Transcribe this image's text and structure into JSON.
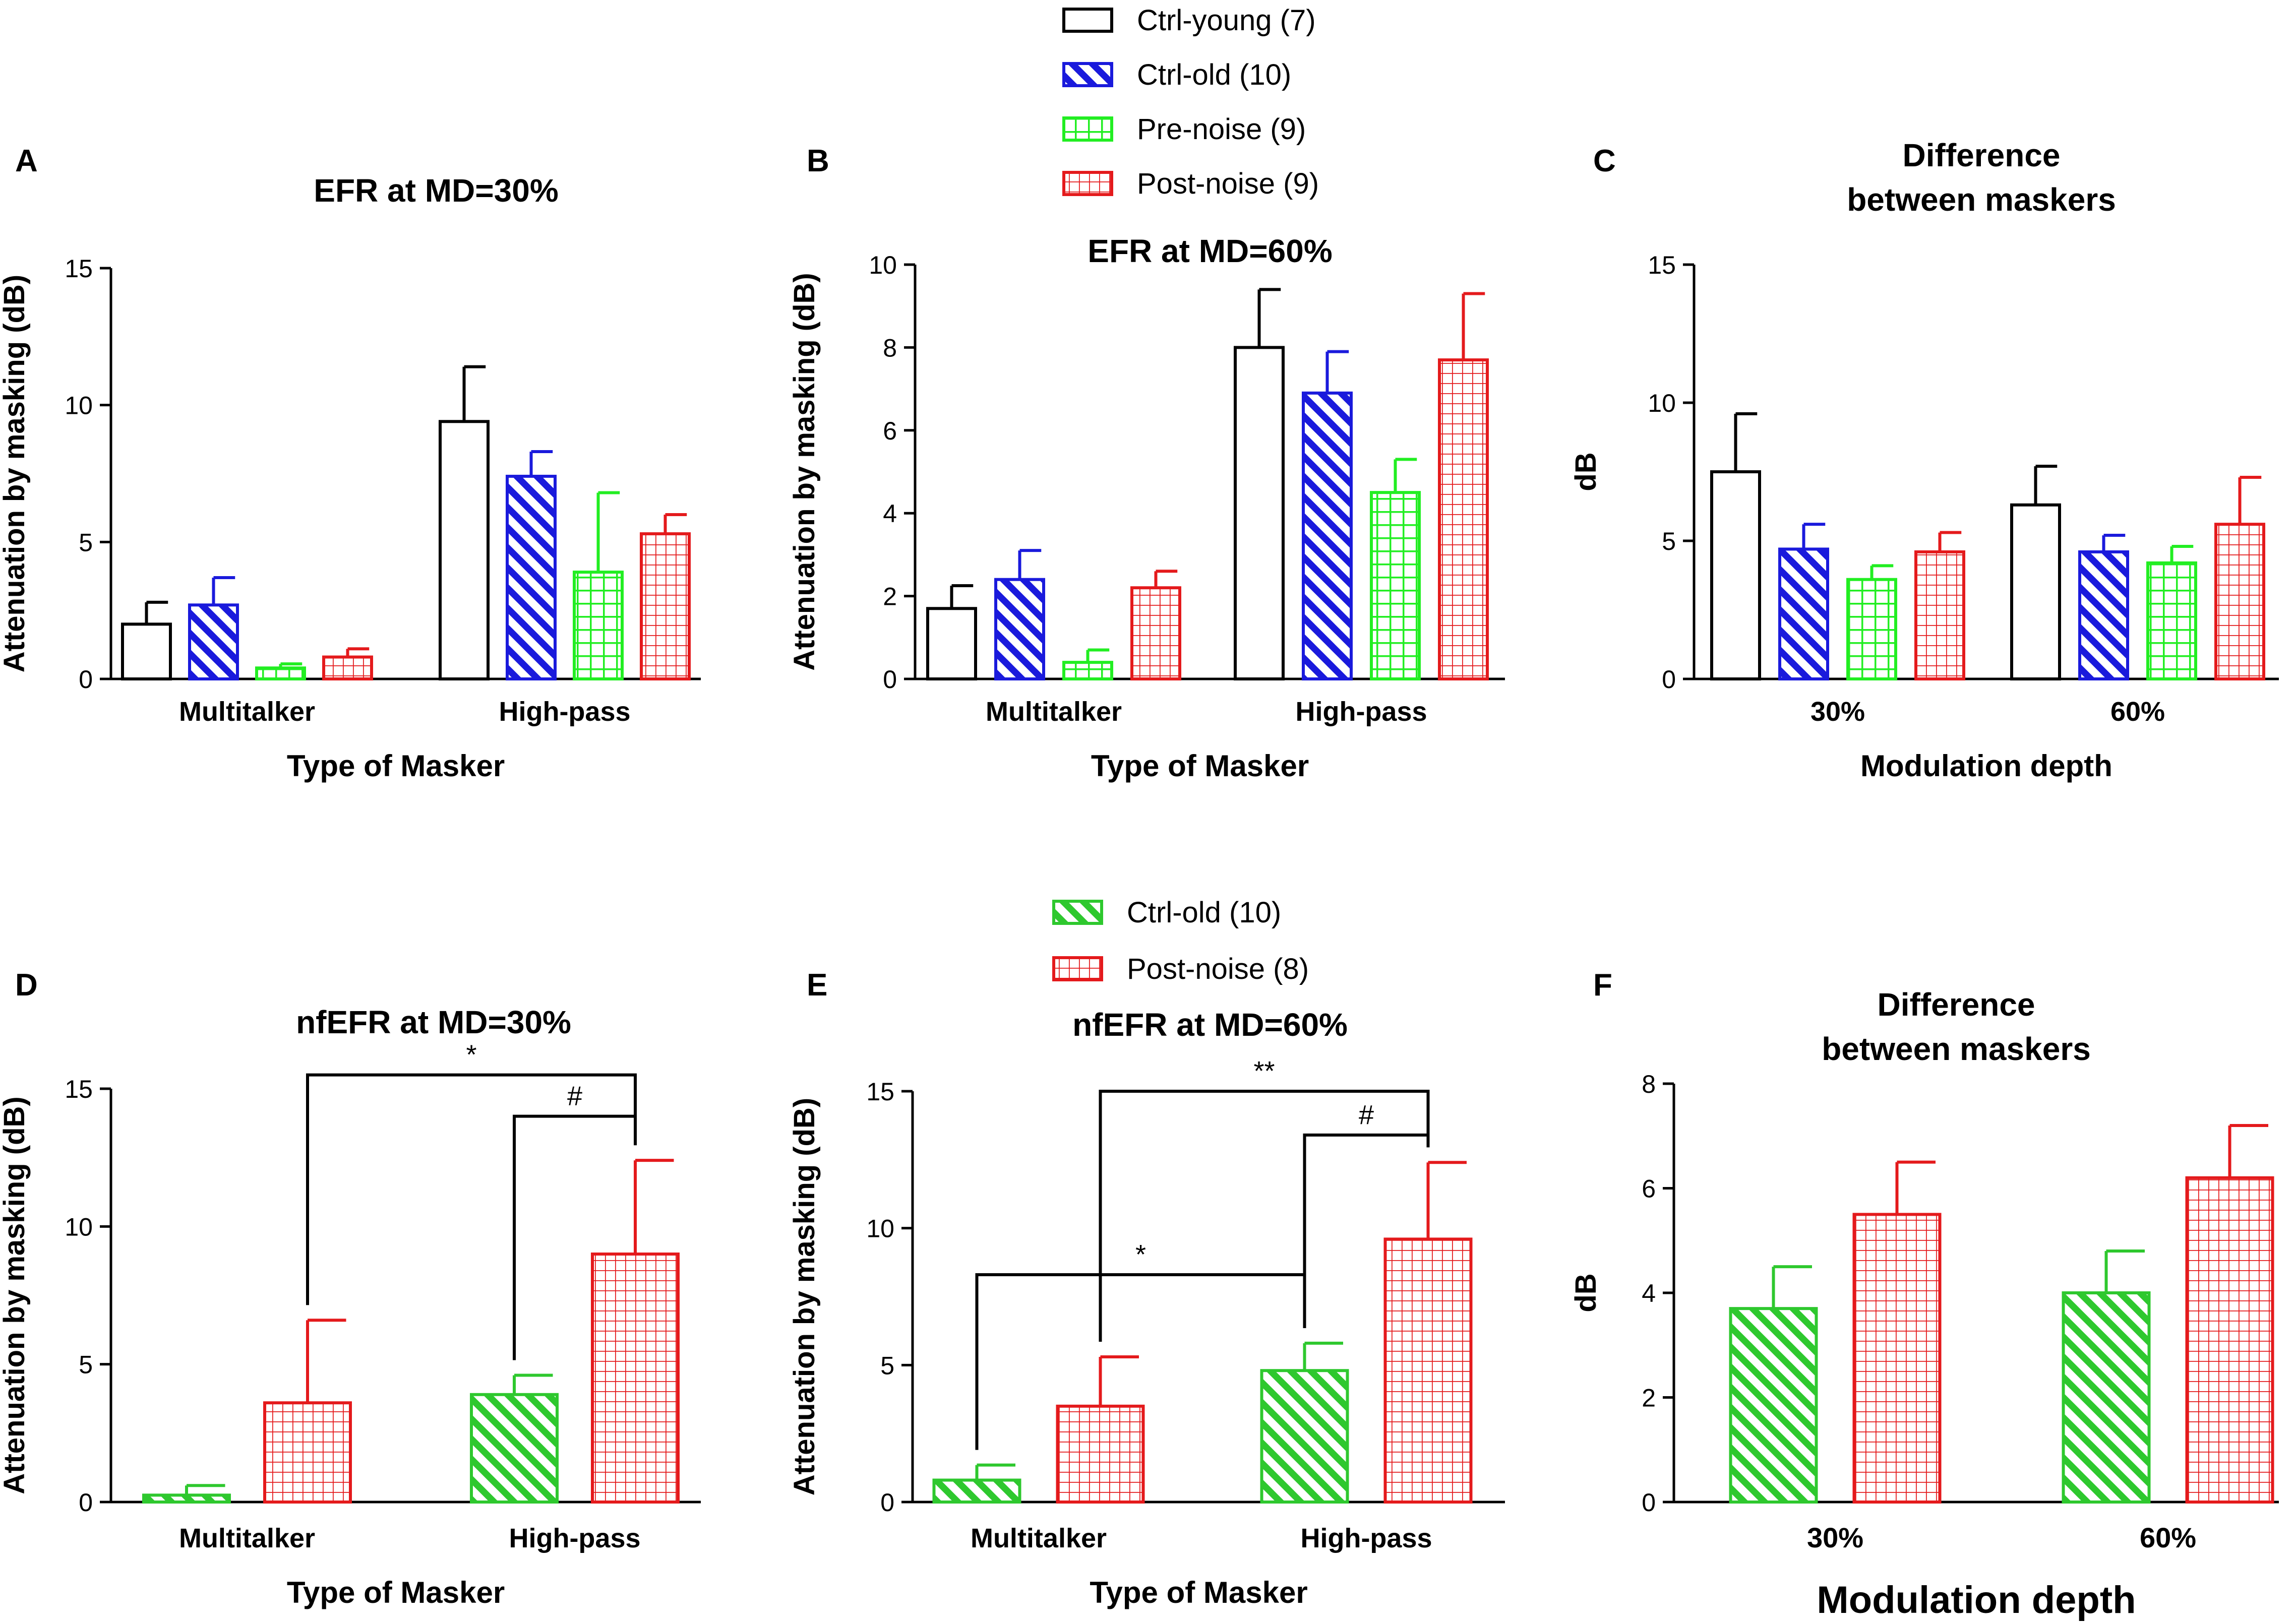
{
  "colors": {
    "axis": "#000000",
    "ctrl_young": "#000000",
    "ctrl_old": "#1a1adc",
    "pre_noise": "#22ee22",
    "post_noise": "#e41a1c",
    "ctrl_old_nf": "#2ec82e"
  },
  "legends": {
    "top": [
      {
        "label": "Ctrl-young (7)",
        "pattern": "none",
        "color": "#000000"
      },
      {
        "label": "Ctrl-old (10)",
        "pattern": "diag",
        "color": "#1a1adc"
      },
      {
        "label": "Pre-noise (9)",
        "pattern": "grid-bold",
        "color": "#22ee22"
      },
      {
        "label": "Post-noise (9)",
        "pattern": "grid",
        "color": "#e41a1c"
      }
    ],
    "bottom": [
      {
        "label": "Ctrl-old (10)",
        "pattern": "diag",
        "color": "#2ec82e"
      },
      {
        "label": "Post-noise (8)",
        "pattern": "grid",
        "color": "#e41a1c"
      }
    ]
  },
  "chart_data": [
    {
      "panel": "A",
      "type": "bar",
      "title": "EFR at MD=30%",
      "xlabel": "Type of Masker",
      "ylabel": "Attenuation by masking (dB)",
      "ylim": [
        0,
        15
      ],
      "yticks": [
        0,
        5,
        10,
        15
      ],
      "categories": [
        "Multitalker",
        "High-pass"
      ],
      "series": [
        {
          "name": "Ctrl-young (7)",
          "values": [
            2.0,
            9.4
          ],
          "errors": [
            0.8,
            2.0
          ]
        },
        {
          "name": "Ctrl-old (10)",
          "values": [
            2.7,
            7.4
          ],
          "errors": [
            1.0,
            0.9
          ]
        },
        {
          "name": "Pre-noise (9)",
          "values": [
            0.4,
            3.9
          ],
          "errors": [
            0.15,
            2.9
          ]
        },
        {
          "name": "Post-noise (9)",
          "values": [
            0.8,
            5.3
          ],
          "errors": [
            0.3,
            0.7
          ]
        }
      ],
      "annotations": []
    },
    {
      "panel": "B",
      "type": "bar",
      "title": "EFR at MD=60%",
      "xlabel": "Type of Masker",
      "ylabel": "Attenuation by masking (dB)",
      "ylim": [
        0,
        10
      ],
      "yticks": [
        0,
        2,
        4,
        6,
        8,
        10
      ],
      "categories": [
        "Multitalker",
        "High-pass"
      ],
      "series": [
        {
          "name": "Ctrl-young (7)",
          "values": [
            1.7,
            8.0
          ],
          "errors": [
            0.55,
            1.4
          ]
        },
        {
          "name": "Ctrl-old (10)",
          "values": [
            2.4,
            6.9
          ],
          "errors": [
            0.7,
            1.0
          ]
        },
        {
          "name": "Pre-noise (9)",
          "values": [
            0.4,
            4.5
          ],
          "errors": [
            0.3,
            0.8
          ]
        },
        {
          "name": "Post-noise (9)",
          "values": [
            2.2,
            7.7
          ],
          "errors": [
            0.4,
            1.6
          ]
        }
      ],
      "annotations": []
    },
    {
      "panel": "C",
      "type": "bar",
      "title": "Difference\nbetween maskers",
      "xlabel": "Modulation depth",
      "ylabel": "dB",
      "ylim": [
        0,
        15
      ],
      "yticks": [
        0,
        5,
        10,
        15
      ],
      "categories": [
        "30%",
        "60%"
      ],
      "series": [
        {
          "name": "Ctrl-young (7)",
          "values": [
            7.5,
            6.3
          ],
          "errors": [
            2.1,
            1.4
          ]
        },
        {
          "name": "Ctrl-old (10)",
          "values": [
            4.7,
            4.6
          ],
          "errors": [
            0.9,
            0.6
          ]
        },
        {
          "name": "Pre-noise (9)",
          "values": [
            3.6,
            4.2
          ],
          "errors": [
            0.5,
            0.6
          ]
        },
        {
          "name": "Post-noise (9)",
          "values": [
            4.6,
            5.6
          ],
          "errors": [
            0.7,
            1.7
          ]
        }
      ],
      "annotations": []
    },
    {
      "panel": "D",
      "type": "bar",
      "title": "nfEFR at MD=30%",
      "xlabel": "Type of Masker",
      "ylabel": "Attenuation by masking (dB)",
      "ylim": [
        0,
        15
      ],
      "yticks": [
        0,
        5,
        10,
        15
      ],
      "categories": [
        "Multitalker",
        "High-pass"
      ],
      "series": [
        {
          "name": "Ctrl-old (10)",
          "values": [
            0.25,
            3.9
          ],
          "errors": [
            0.35,
            0.7
          ]
        },
        {
          "name": "Post-noise (8)",
          "values": [
            3.6,
            9.0
          ],
          "errors": [
            3.0,
            3.4
          ]
        }
      ],
      "annotations": [
        {
          "label": "*",
          "from_cat": 0,
          "from_series": 1,
          "to_cat": 1,
          "to_series": 1,
          "level": 15.5
        },
        {
          "label": "#",
          "from_cat": 1,
          "from_series": 0,
          "to_cat": 1,
          "to_series": 1,
          "level": 14.0
        }
      ]
    },
    {
      "panel": "E",
      "type": "bar",
      "title": "nfEFR at MD=60%",
      "xlabel": "Type of Masker",
      "ylabel": "Attenuation by masking (dB)",
      "ylim": [
        0,
        15
      ],
      "yticks": [
        0,
        5,
        10,
        15
      ],
      "categories": [
        "Multitalker",
        "High-pass"
      ],
      "series": [
        {
          "name": "Ctrl-old (10)",
          "values": [
            0.8,
            4.8
          ],
          "errors": [
            0.55,
            1.0
          ]
        },
        {
          "name": "Post-noise (8)",
          "values": [
            3.5,
            9.6
          ],
          "errors": [
            1.8,
            2.8
          ]
        }
      ],
      "annotations": [
        {
          "label": "**",
          "from_cat": 0,
          "from_series": 1,
          "to_cat": 1,
          "to_series": 1,
          "level": 15.0
        },
        {
          "label": "#",
          "from_cat": 1,
          "from_series": 0,
          "to_cat": 1,
          "to_series": 1,
          "level": 13.4
        },
        {
          "label": "*",
          "from_cat": 0,
          "from_series": 0,
          "to_cat": 1,
          "to_series": 0,
          "level": 8.3
        }
      ]
    },
    {
      "panel": "F",
      "type": "bar",
      "title": "Difference\nbetween maskers",
      "xlabel": "Modulation depth",
      "ylabel": "dB",
      "ylim": [
        0,
        8
      ],
      "yticks": [
        0,
        2,
        4,
        6,
        8
      ],
      "categories": [
        "30%",
        "60%"
      ],
      "series": [
        {
          "name": "Ctrl-old (10)",
          "values": [
            3.7,
            4.0
          ],
          "errors": [
            0.8,
            0.8
          ]
        },
        {
          "name": "Post-noise (8)",
          "values": [
            5.5,
            6.2
          ],
          "errors": [
            1.0,
            1.0
          ]
        }
      ],
      "annotations": []
    }
  ]
}
